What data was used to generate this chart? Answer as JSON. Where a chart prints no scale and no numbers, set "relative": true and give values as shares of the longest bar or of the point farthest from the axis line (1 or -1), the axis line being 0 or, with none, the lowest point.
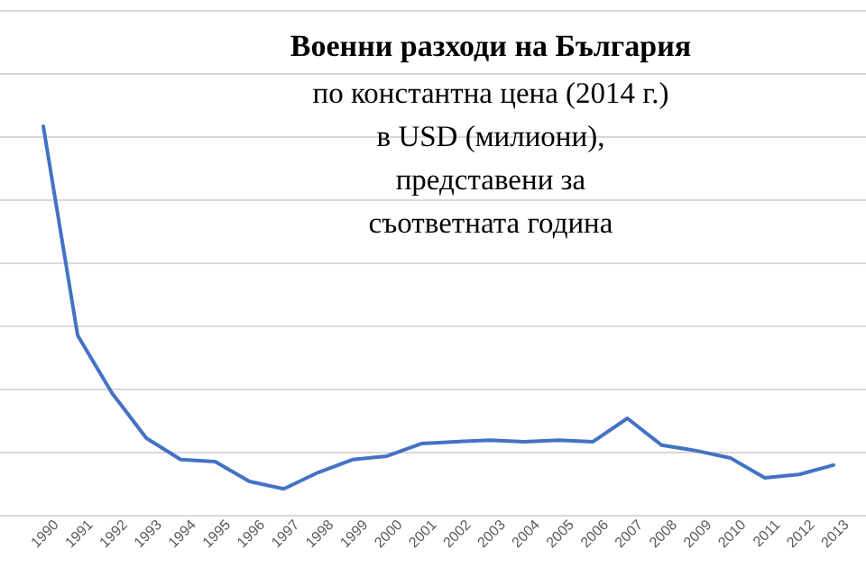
{
  "chart_data": {
    "type": "line",
    "title": "Военни разходи на България",
    "subtitle": "по константна цена (2014 г.)\nв USD (милиони),\nпредставени за\nсъответната година",
    "relative": true,
    "grid": "y",
    "marker": "none",
    "categories": [
      "1990",
      "1991",
      "1992",
      "1993",
      "1994",
      "1995",
      "1996",
      "1997",
      "1998",
      "1999",
      "2000",
      "2001",
      "2002",
      "2003",
      "2004",
      "2005",
      "2006",
      "2007",
      "2008",
      "2009",
      "2010",
      "2011",
      "2012",
      "2013"
    ],
    "series": [
      {
        "color": "#4472c4",
        "values": [
          1,
          0.463,
          0.315,
          0.199,
          0.144,
          0.139,
          0.088,
          0.069,
          0.111,
          0.144,
          0.153,
          0.185,
          0.19,
          0.194,
          0.19,
          0.194,
          0.19,
          0.25,
          0.181,
          0.167,
          0.148,
          0.097,
          0.106,
          0.13
        ]
      }
    ]
  }
}
